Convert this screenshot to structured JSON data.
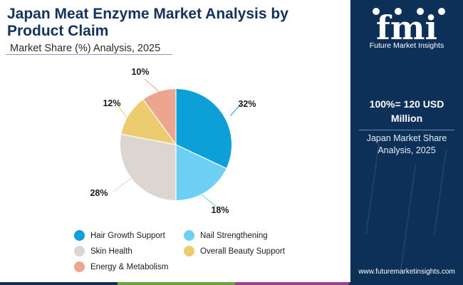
{
  "header": {
    "title": "Japan Meat Enzyme Market Analysis by Product Claim",
    "subtitle": "Market Share (%) Analysis, 2025"
  },
  "chart_data": {
    "type": "pie",
    "title": "Japan Meat Enzyme Market Analysis by Product Claim",
    "subtitle": "Market Share (%) Analysis, 2025",
    "categories": [
      "Hair Growth Support",
      "Nail Strengthening",
      "Skin Health",
      "Overall Beauty Support",
      "Energy & Metabolism"
    ],
    "values": [
      32,
      18,
      28,
      12,
      10
    ],
    "value_labels": [
      "32%",
      "18%",
      "28%",
      "12%",
      "10%"
    ],
    "colors": [
      "#0c9fd8",
      "#6dcff4",
      "#ddd5d0",
      "#eccc6f",
      "#eca58f"
    ],
    "legend_placement": "bottom"
  },
  "sidebar": {
    "logo_text": "fmi",
    "logo_subtitle": "Future Market Insights",
    "total_value": "100%= 120 USD Million",
    "market_caption": "Japan Market Share Analysis, 2025",
    "website": "www.futuremarketinsights.com",
    "background_color": "#0d3059"
  },
  "bottom_bar_colors": [
    "#0d3059",
    "#6ba53a",
    "#9c3f8f",
    "#0d3059"
  ]
}
